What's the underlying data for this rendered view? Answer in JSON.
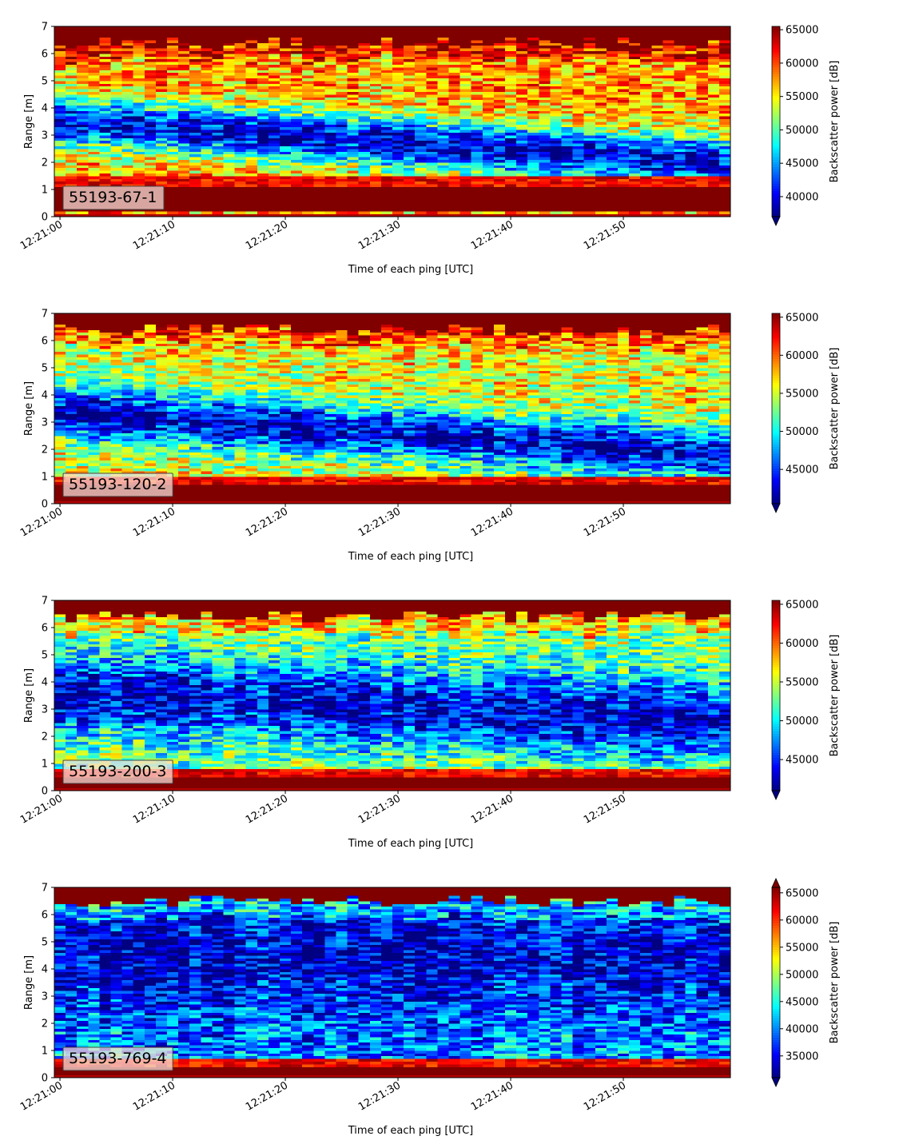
{
  "colors": {
    "colormap": "jet",
    "over": "#7f0000",
    "under": "#00007f",
    "tag_box_edge": "#444444"
  },
  "chart_data": [
    {
      "type": "heatmap",
      "tag": "55193-67-1",
      "xlabel": "Time of each ping [UTC]",
      "ylabel": "Range [m]",
      "colorbar_label": "Backscatter power [dB]",
      "x_ticks": [
        "12:21:00",
        "12:21:10",
        "12:21:20",
        "12:21:30",
        "12:21:40",
        "12:21:50"
      ],
      "x_range": [
        "12:20:59.5",
        "12:21:59.5"
      ],
      "y_ticks": [
        0,
        1,
        2,
        3,
        4,
        5,
        6,
        7
      ],
      "ylim": [
        0,
        7
      ],
      "colorbar_ticks": [
        40000,
        45000,
        50000,
        55000,
        60000,
        65000
      ],
      "clim": [
        37000,
        65500
      ],
      "extend": "min",
      "pings": 60,
      "range_bins": 70,
      "bottom_band_m": [
        0.2,
        1.1
      ],
      "low_layer": {
        "center_m_start": 3.5,
        "center_m_end": 2.0,
        "width_m": 1.0
      },
      "upper_level": "high",
      "top_max_m": 6.9
    },
    {
      "type": "heatmap",
      "tag": "55193-120-2",
      "xlabel": "Time of each ping [UTC]",
      "ylabel": "Range [m]",
      "colorbar_label": "Backscatter power [dB]",
      "x_ticks": [
        "12:21:00",
        "12:21:10",
        "12:21:20",
        "12:21:30",
        "12:21:40",
        "12:21:50"
      ],
      "x_range": [
        "12:20:59.5",
        "12:21:59.5"
      ],
      "y_ticks": [
        0,
        1,
        2,
        3,
        4,
        5,
        6,
        7
      ],
      "ylim": [
        0,
        7
      ],
      "colorbar_ticks": [
        45000,
        50000,
        55000,
        60000,
        65000
      ],
      "clim": [
        40500,
        65500
      ],
      "extend": "min",
      "pings": 60,
      "range_bins": 70,
      "bottom_band_m": [
        0.15,
        0.7
      ],
      "low_layer": {
        "center_m_start": 3.4,
        "center_m_end": 1.8,
        "width_m": 1.1
      },
      "upper_level": "mid-high",
      "top_max_m": 6.9
    },
    {
      "type": "heatmap",
      "tag": "55193-200-3",
      "xlabel": "Time of each ping [UTC]",
      "ylabel": "Range [m]",
      "colorbar_label": "Backscatter power [dB]",
      "x_ticks": [
        "12:21:00",
        "12:21:10",
        "12:21:20",
        "12:21:30",
        "12:21:40",
        "12:21:50"
      ],
      "x_range": [
        "12:20:59.5",
        "12:21:59.5"
      ],
      "y_ticks": [
        0,
        1,
        2,
        3,
        4,
        5,
        6,
        7
      ],
      "ylim": [
        0,
        7
      ],
      "colorbar_ticks": [
        45000,
        50000,
        55000,
        60000,
        65000
      ],
      "clim": [
        41000,
        65500
      ],
      "extend": "min",
      "pings": 60,
      "range_bins": 70,
      "bottom_band_m": [
        0.1,
        0.5
      ],
      "low_layer": {
        "center_m_start": 3.6,
        "center_m_end": 2.6,
        "width_m": 1.6
      },
      "upper_level": "mid",
      "top_max_m": 6.9
    },
    {
      "type": "heatmap",
      "tag": "55193-769-4",
      "xlabel": "Time of each ping [UTC]",
      "ylabel": "Range [m]",
      "colorbar_label": "Backscatter power [dB]",
      "x_ticks": [
        "12:21:00",
        "12:21:10",
        "12:21:20",
        "12:21:30",
        "12:21:40",
        "12:21:50"
      ],
      "x_range": [
        "12:20:59.5",
        "12:21:59.5"
      ],
      "y_ticks": [
        0,
        1,
        2,
        3,
        4,
        5,
        6,
        7
      ],
      "ylim": [
        0,
        7
      ],
      "colorbar_ticks": [
        35000,
        40000,
        45000,
        50000,
        55000,
        60000,
        65000
      ],
      "clim": [
        31000,
        66000
      ],
      "extend": "both",
      "pings": 60,
      "range_bins": 70,
      "bottom_band_m": [
        0.1,
        0.35
      ],
      "low_layer": {
        "center_m_start": 4.5,
        "center_m_end": 4.5,
        "width_m": 2.5
      },
      "upper_level": "low",
      "top_max_m": 6.95
    }
  ]
}
